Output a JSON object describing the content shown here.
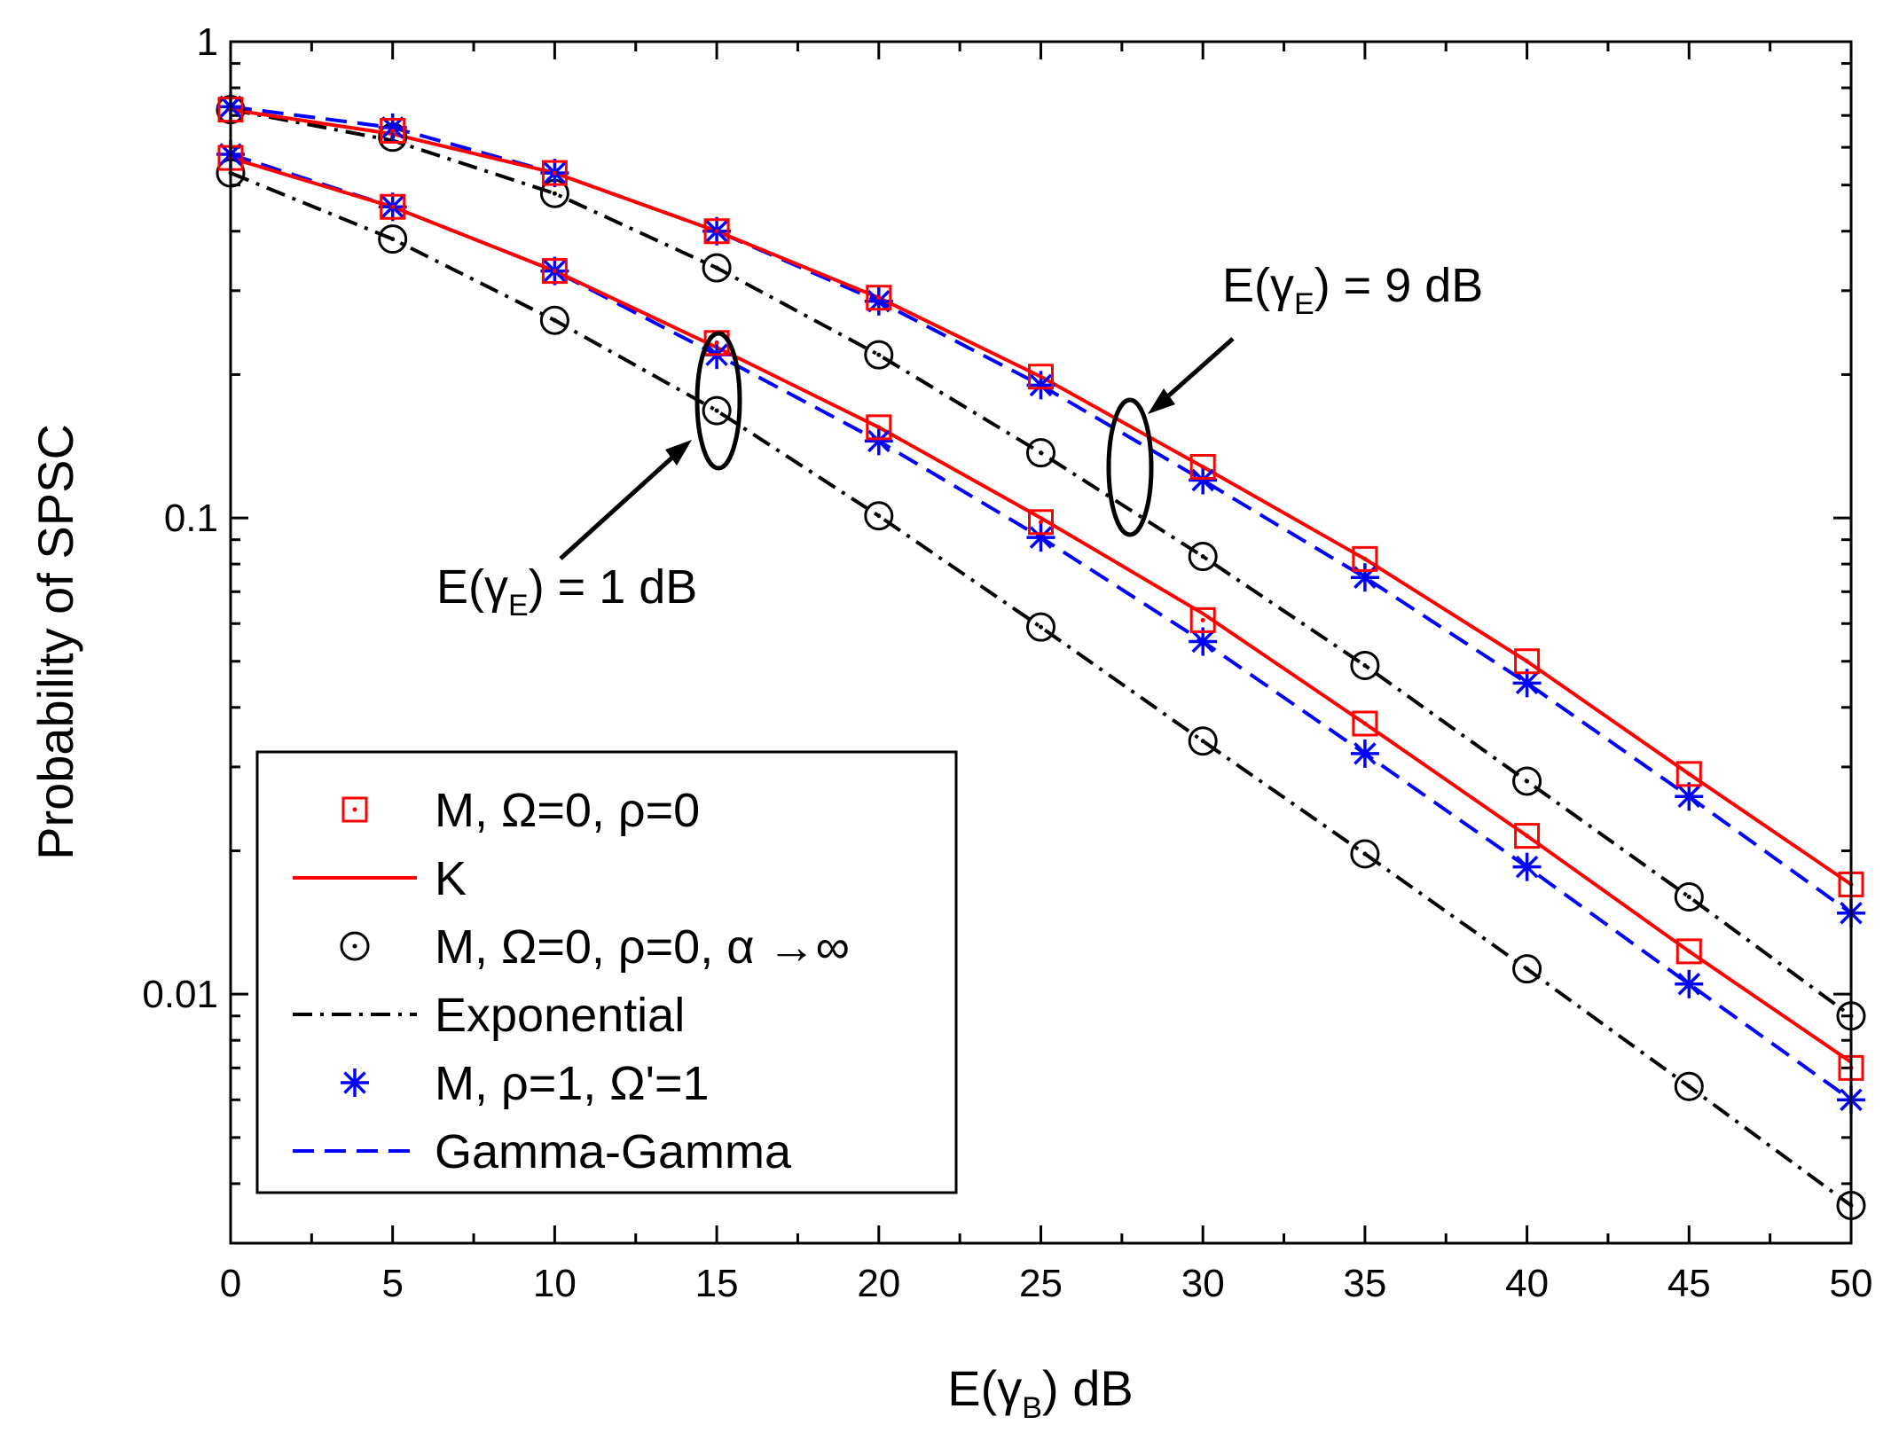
{
  "chart_data": {
    "type": "line",
    "xlabel": "E(γB) dB",
    "ylabel": "Probability of SPSC",
    "xlim": [
      0,
      50
    ],
    "ylim": [
      0.003,
      1
    ],
    "yscale": "log",
    "x_ticks": [
      "0",
      "5",
      "10",
      "15",
      "20",
      "25",
      "30",
      "35",
      "40",
      "45",
      "50"
    ],
    "y_ticks": [
      "1",
      "0.1",
      "0.01"
    ],
    "x": [
      0,
      5,
      10,
      15,
      20,
      25,
      30,
      35,
      40,
      45,
      50
    ],
    "groups": [
      {
        "label": "E(γE) = 9 dB",
        "series": [
          {
            "name": "M, Ω=0, ρ=0",
            "style": "marker-square",
            "color": "#ff0000",
            "values": [
              0.72,
              0.65,
              0.53,
              0.4,
              0.29,
              0.198,
              0.128,
              0.082,
              0.05,
              0.029,
              0.017
            ]
          },
          {
            "name": "K",
            "style": "solid",
            "color": "#ff0000",
            "values": [
              0.72,
              0.64,
              0.53,
              0.4,
              0.29,
              0.198,
              0.128,
              0.082,
              0.05,
              0.029,
              0.017
            ]
          },
          {
            "name": "M, Ω=0, ρ=0, α →∞",
            "style": "marker-circle",
            "color": "#000000",
            "values": [
              0.72,
              0.63,
              0.48,
              0.335,
              0.22,
              0.137,
              0.083,
              0.049,
              0.028,
              0.016,
              0.009
            ]
          },
          {
            "name": "Exponential",
            "style": "dashdot",
            "color": "#000000",
            "values": [
              0.72,
              0.62,
              0.48,
              0.335,
              0.22,
              0.137,
              0.083,
              0.049,
              0.028,
              0.016,
              0.009
            ]
          },
          {
            "name": "M, ρ=1, Ω'=1",
            "style": "marker-star",
            "color": "#0000ff",
            "values": [
              0.73,
              0.66,
              0.53,
              0.4,
              0.285,
              0.19,
              0.12,
              0.075,
              0.045,
              0.026,
              0.0148
            ]
          },
          {
            "name": "Gamma-Gamma",
            "style": "dashed",
            "color": "#0000ff",
            "values": [
              0.73,
              0.66,
              0.53,
              0.4,
              0.285,
              0.19,
              0.12,
              0.075,
              0.045,
              0.026,
              0.0148
            ]
          }
        ]
      },
      {
        "label": "E(γE) = 1 dB",
        "series": [
          {
            "name": "M, Ω=0, ρ=0",
            "style": "marker-square",
            "color": "#ff0000",
            "values": [
              0.57,
              0.45,
              0.33,
              0.233,
              0.155,
              0.098,
              0.061,
              0.037,
              0.0215,
              0.0123,
              0.007
            ]
          },
          {
            "name": "K",
            "style": "solid",
            "color": "#ff0000",
            "values": [
              0.57,
              0.45,
              0.33,
              0.228,
              0.155,
              0.1,
              0.063,
              0.037,
              0.0215,
              0.0123,
              0.0072
            ]
          },
          {
            "name": "M, Ω=0, ρ=0, α →∞",
            "style": "marker-circle",
            "color": "#000000",
            "values": [
              0.53,
              0.385,
              0.26,
              0.168,
              0.101,
              0.059,
              0.034,
              0.0197,
              0.0113,
              0.0064,
              0.0036
            ]
          },
          {
            "name": "Exponential",
            "style": "dashdot",
            "color": "#000000",
            "values": [
              0.53,
              0.385,
              0.26,
              0.168,
              0.101,
              0.059,
              0.034,
              0.0197,
              0.0113,
              0.0064,
              0.0036
            ]
          },
          {
            "name": "M, ρ=1, Ω'=1",
            "style": "marker-star",
            "color": "#0000ff",
            "values": [
              0.58,
              0.45,
              0.33,
              0.22,
              0.145,
              0.091,
              0.055,
              0.032,
              0.0185,
              0.0105,
              0.006
            ]
          },
          {
            "name": "Gamma-Gamma",
            "style": "dashed",
            "color": "#0000ff",
            "values": [
              0.58,
              0.45,
              0.33,
              0.22,
              0.145,
              0.091,
              0.055,
              0.032,
              0.0185,
              0.0105,
              0.006
            ]
          }
        ]
      }
    ],
    "legend": {
      "placement": "lower-left",
      "entries": [
        {
          "label": "M, Ω=0, ρ=0",
          "style": "marker-square",
          "color": "#ff0000"
        },
        {
          "label": "K",
          "style": "solid",
          "color": "#ff0000"
        },
        {
          "label": "M, Ω=0, ρ=0, α →∞",
          "style": "marker-circle",
          "color": "#000000"
        },
        {
          "label": "Exponential",
          "style": "dashdot",
          "color": "#000000"
        },
        {
          "label": "M, ρ=1, Ω'=1",
          "style": "marker-star",
          "color": "#0000ff"
        },
        {
          "label": "Gamma-Gamma",
          "style": "dashed",
          "color": "#0000ff"
        }
      ]
    },
    "annotations": [
      {
        "text": "E(γE) = 9 dB",
        "points_to": "upper curve group, near E(γB) = 28 dB"
      },
      {
        "text": "E(γE) = 1 dB",
        "points_to": "lower curve group, near E(γB) = 15 dB"
      }
    ]
  }
}
